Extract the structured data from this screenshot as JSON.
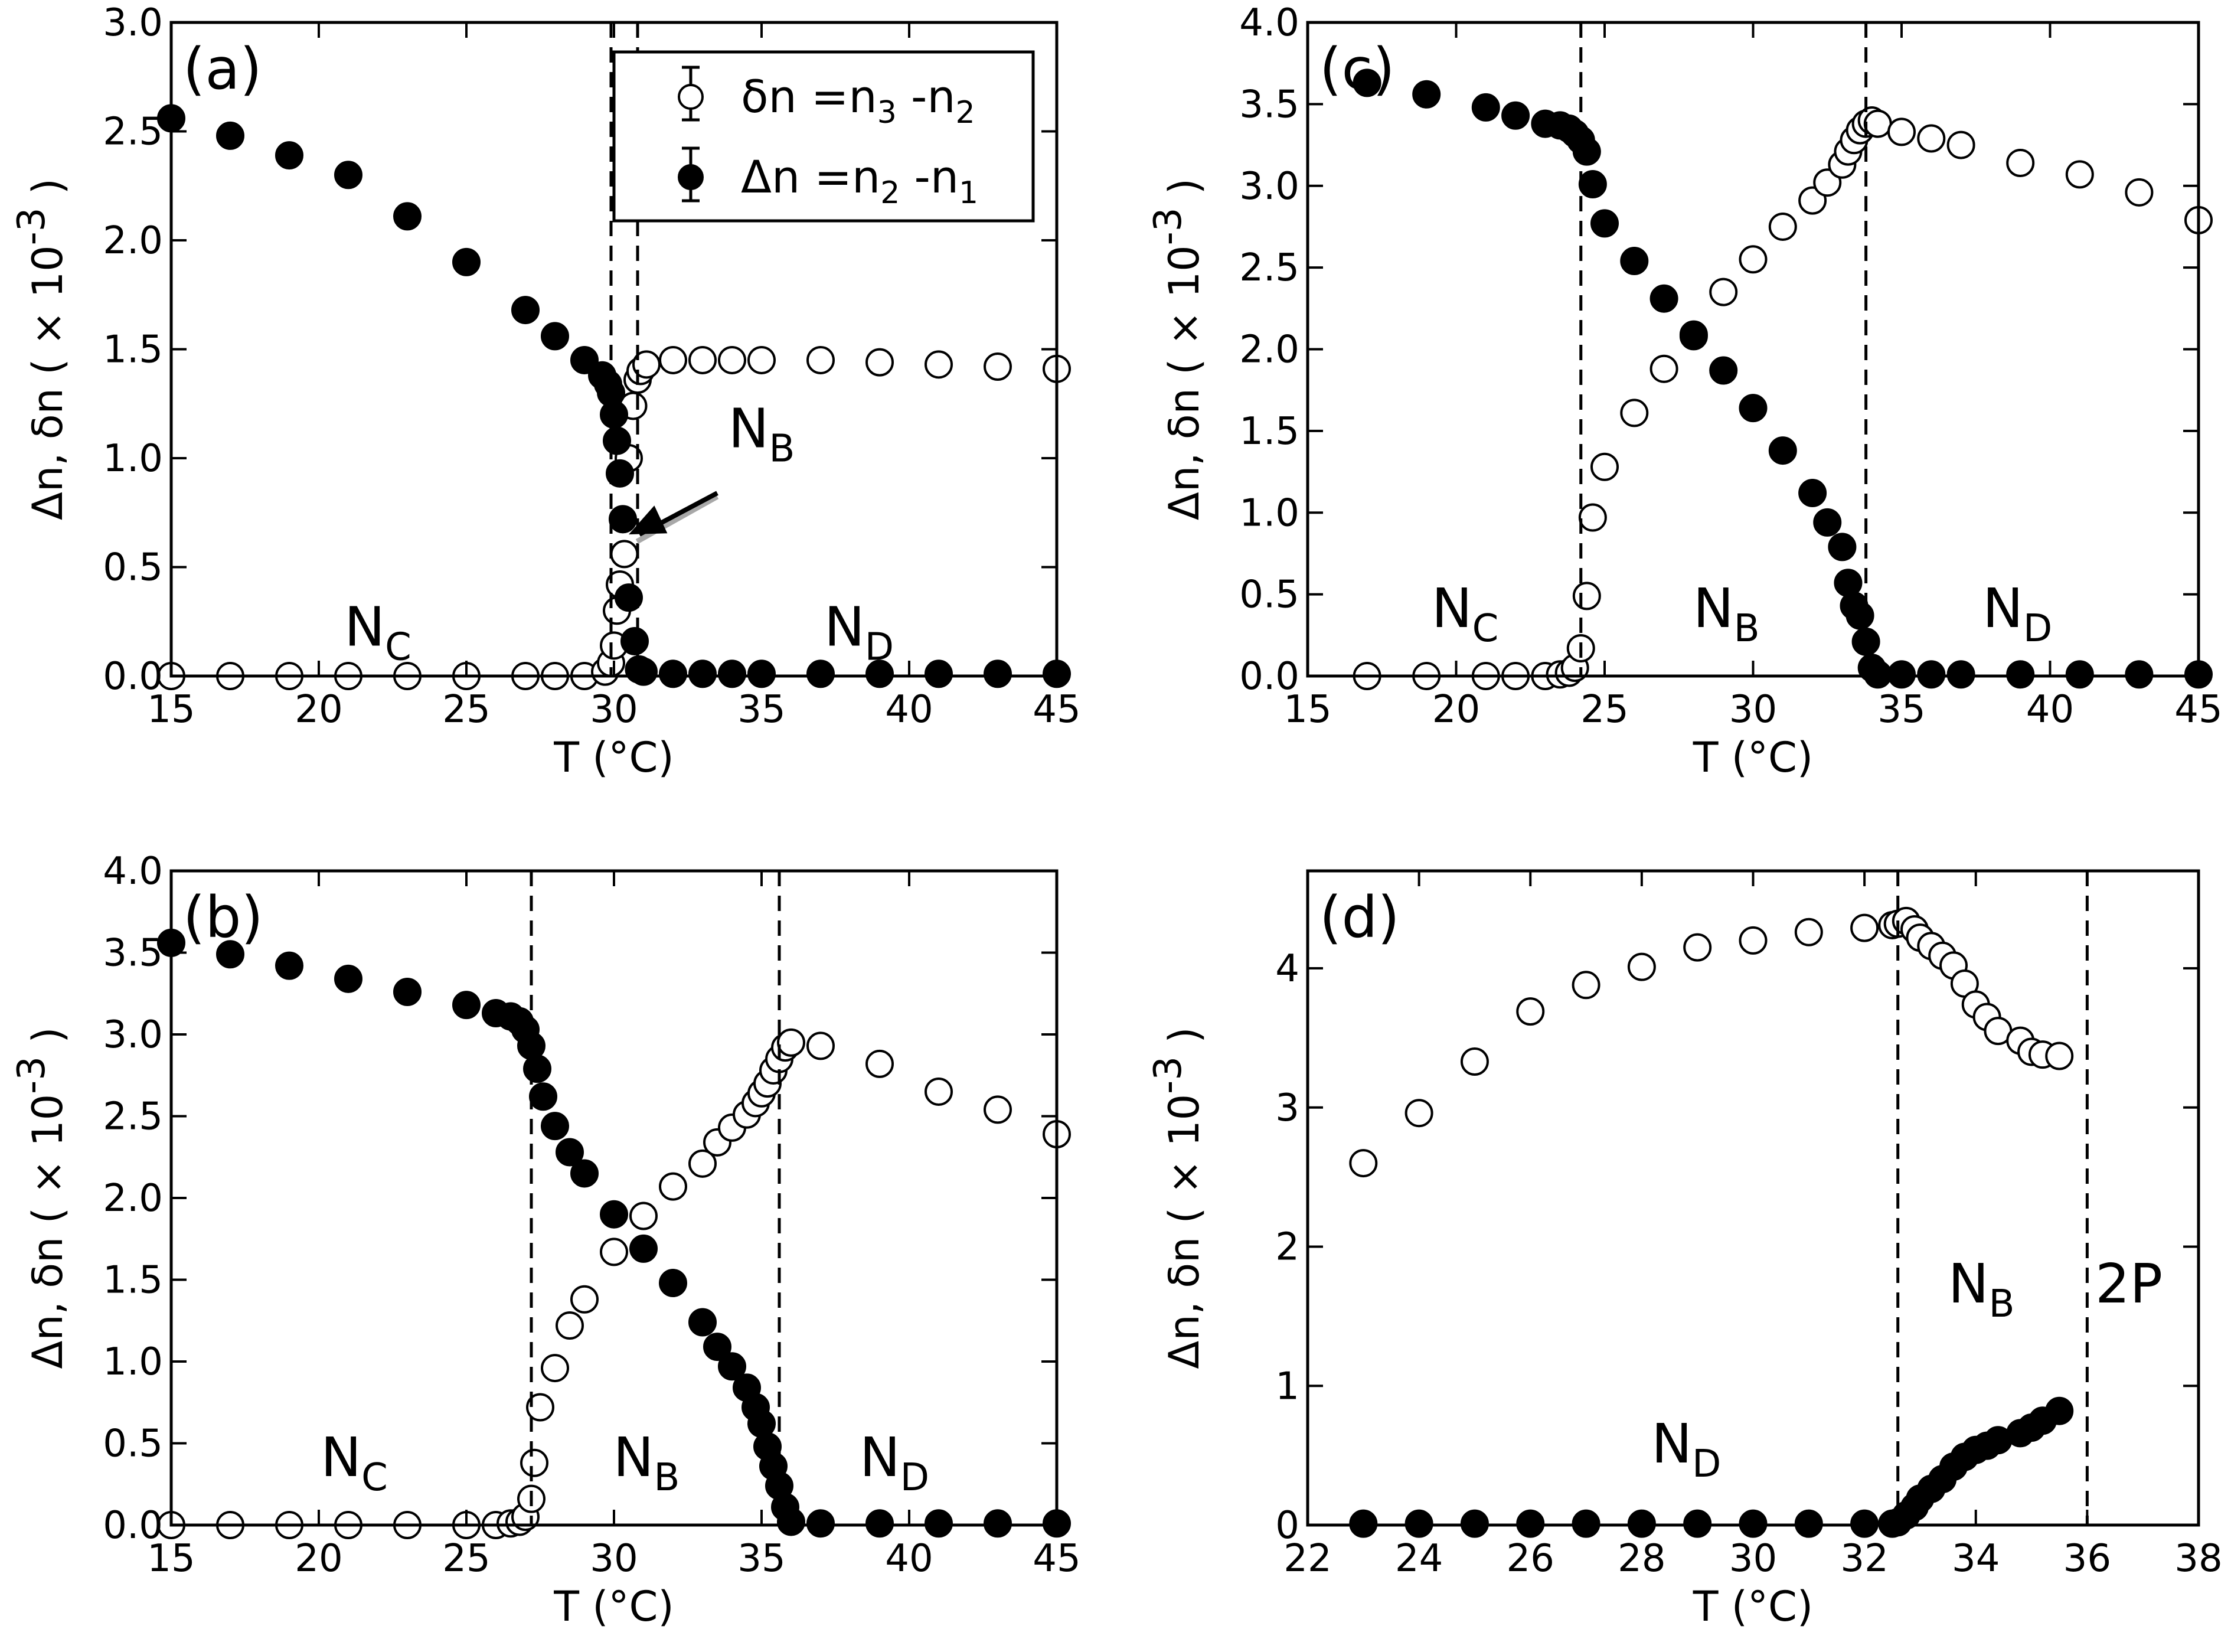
{
  "figure": {
    "legend": {
      "open": {
        "symbol": "δn",
        "eq": " =n",
        "sub1": "3",
        "mid": " -n",
        "sub2": "2"
      },
      "filled": {
        "symbol": "Δn",
        "eq": " =n",
        "sub1": "2",
        "mid": " -n",
        "sub2": "1"
      }
    }
  },
  "chart_data": [
    {
      "id": "a",
      "type": "scatter",
      "panel_label": "(a)",
      "xlabel": "T (°C)",
      "ylabel": {
        "main": "Δn, δn ( × 10",
        "sup": "-3",
        "close": ")"
      },
      "xlim": [
        15,
        45
      ],
      "ylim": [
        0,
        3.0
      ],
      "xticks": [
        15,
        20,
        25,
        30,
        35,
        40,
        45
      ],
      "yticks": [
        0,
        0.5,
        1.0,
        1.5,
        2.0,
        2.5,
        3.0
      ],
      "ytick_labels": [
        "0.0",
        "0.5",
        "1.0",
        "1.5",
        "2.0",
        "2.5",
        "3.0"
      ],
      "vlines": [
        29.9,
        30.8
      ],
      "arrow": {
        "from": [
          33.5,
          0.84
        ],
        "to": [
          30.5,
          0.65
        ]
      },
      "phase_labels": [
        {
          "main": "N",
          "sub": "C",
          "x": 22,
          "y": 0.14
        },
        {
          "main": "N",
          "sub": "B",
          "x": 35,
          "y": 1.05
        },
        {
          "main": "N",
          "sub": "D",
          "x": 38.3,
          "y": 0.14
        }
      ],
      "series": [
        {
          "name": "δn = n3 - n2",
          "marker": "open",
          "x": [
            15,
            17,
            19,
            21,
            23,
            25,
            27,
            28,
            29,
            29.7,
            29.9,
            30.0,
            30.1,
            30.2,
            30.35,
            30.5,
            30.65,
            30.8,
            30.9,
            31.1,
            32,
            33,
            34,
            35,
            37,
            39,
            41,
            43,
            45
          ],
          "y": [
            0,
            0,
            0,
            0,
            0,
            0,
            0,
            0,
            0,
            0.02,
            0.06,
            0.14,
            0.3,
            0.42,
            0.56,
            1.0,
            1.24,
            1.36,
            1.4,
            1.43,
            1.45,
            1.45,
            1.45,
            1.45,
            1.45,
            1.44,
            1.43,
            1.42,
            1.41
          ]
        },
        {
          "name": "Δn = n2 - n1",
          "marker": "filled",
          "x": [
            15,
            17,
            19,
            21,
            23,
            25,
            27,
            28,
            29,
            29.6,
            29.8,
            29.9,
            30.0,
            30.1,
            30.2,
            30.3,
            30.5,
            30.7,
            30.85,
            31,
            32,
            33,
            34,
            35,
            37,
            39,
            41,
            43,
            45
          ],
          "y": [
            2.56,
            2.48,
            2.39,
            2.3,
            2.11,
            1.9,
            1.68,
            1.56,
            1.45,
            1.38,
            1.34,
            1.3,
            1.2,
            1.08,
            0.93,
            0.72,
            0.36,
            0.16,
            0.03,
            0.02,
            0.01,
            0.01,
            0.01,
            0.01,
            0.01,
            0.01,
            0.01,
            0.01,
            0.01
          ]
        }
      ]
    },
    {
      "id": "b",
      "type": "scatter",
      "panel_label": "(b)",
      "xlabel": "T (°C)",
      "ylabel": {
        "main": "Δn, δn ( × 10",
        "sup": "-3",
        "close": ")"
      },
      "xlim": [
        15,
        45
      ],
      "ylim": [
        0,
        4.0
      ],
      "xticks": [
        15,
        20,
        25,
        30,
        35,
        40,
        45
      ],
      "yticks": [
        0,
        0.5,
        1.0,
        1.5,
        2.0,
        2.5,
        3.0,
        3.5,
        4.0
      ],
      "ytick_labels": [
        "0.0",
        "0.5",
        "1.0",
        "1.5",
        "2.0",
        "2.5",
        "3.0",
        "3.5",
        "4.0"
      ],
      "vlines": [
        27.2,
        35.6
      ],
      "phase_labels": [
        {
          "main": "N",
          "sub": "C",
          "x": 21.2,
          "y": 0.3
        },
        {
          "main": "N",
          "sub": "B",
          "x": 31.1,
          "y": 0.3
        },
        {
          "main": "N",
          "sub": "D",
          "x": 39.5,
          "y": 0.3
        }
      ],
      "series": [
        {
          "name": "δn = n3 - n2",
          "marker": "open",
          "x": [
            15,
            17,
            19,
            21,
            23,
            25,
            26,
            26.5,
            26.8,
            27.0,
            27.2,
            27.3,
            27.5,
            28,
            28.5,
            29,
            30,
            31,
            32,
            33,
            33.5,
            34,
            34.5,
            34.8,
            35.0,
            35.2,
            35.4,
            35.6,
            35.8,
            36,
            37,
            39,
            41,
            43,
            45
          ],
          "y": [
            0,
            0,
            0,
            0,
            0,
            0,
            0,
            0.01,
            0.02,
            0.05,
            0.16,
            0.38,
            0.72,
            0.96,
            1.22,
            1.38,
            1.67,
            1.89,
            2.07,
            2.21,
            2.34,
            2.43,
            2.51,
            2.58,
            2.64,
            2.7,
            2.78,
            2.85,
            2.92,
            2.95,
            2.93,
            2.82,
            2.65,
            2.54,
            2.39
          ]
        },
        {
          "name": "Δn = n2 - n1",
          "marker": "filled",
          "x": [
            15,
            17,
            19,
            21,
            23,
            25,
            26,
            26.5,
            26.8,
            27.0,
            27.2,
            27.4,
            27.6,
            28,
            28.5,
            29,
            30,
            31,
            32,
            33,
            33.5,
            34,
            34.5,
            34.8,
            35.0,
            35.2,
            35.4,
            35.6,
            35.8,
            36,
            37,
            39,
            41,
            43,
            45
          ],
          "y": [
            3.56,
            3.49,
            3.42,
            3.34,
            3.26,
            3.18,
            3.13,
            3.11,
            3.08,
            3.03,
            2.93,
            2.79,
            2.62,
            2.44,
            2.28,
            2.15,
            1.9,
            1.69,
            1.48,
            1.24,
            1.09,
            0.97,
            0.84,
            0.72,
            0.62,
            0.48,
            0.36,
            0.24,
            0.11,
            0.02,
            0.01,
            0.01,
            0.01,
            0.01,
            0.01
          ]
        }
      ]
    },
    {
      "id": "c",
      "type": "scatter",
      "panel_label": "(c)",
      "xlabel": "T (°C)",
      "ylabel": {
        "main": "Δn, δn ( × 10",
        "sup": "-3",
        "close": ")"
      },
      "xlim": [
        15,
        45
      ],
      "ylim": [
        0,
        4.0
      ],
      "xticks": [
        15,
        20,
        25,
        30,
        35,
        40,
        45
      ],
      "yticks": [
        0,
        0.5,
        1.0,
        1.5,
        2.0,
        2.5,
        3.0,
        3.5,
        4.0
      ],
      "ytick_labels": [
        "0.0",
        "0.5",
        "1.0",
        "1.5",
        "2.0",
        "2.5",
        "3.0",
        "3.5",
        "4.0"
      ],
      "vlines": [
        24.2,
        33.8
      ],
      "phase_labels": [
        {
          "main": "N",
          "sub": "C",
          "x": 20.3,
          "y": 0.3
        },
        {
          "main": "N",
          "sub": "B",
          "x": 29.1,
          "y": 0.3
        },
        {
          "main": "N",
          "sub": "D",
          "x": 38.9,
          "y": 0.3
        }
      ],
      "series": [
        {
          "name": "δn = n3 - n2",
          "marker": "open",
          "x": [
            17,
            19,
            21,
            22,
            23,
            23.5,
            23.8,
            24.0,
            24.2,
            24.4,
            24.6,
            25,
            26,
            27,
            28,
            29,
            30,
            31,
            32,
            32.5,
            33,
            33.2,
            33.4,
            33.6,
            33.8,
            34.0,
            34.2,
            35,
            36,
            37,
            39,
            41,
            43,
            45
          ],
          "y": [
            0,
            0,
            0,
            0,
            0,
            0.01,
            0.02,
            0.05,
            0.17,
            0.49,
            0.97,
            1.28,
            1.61,
            1.88,
            2.09,
            2.35,
            2.55,
            2.75,
            2.91,
            3.02,
            3.13,
            3.21,
            3.28,
            3.34,
            3.38,
            3.4,
            3.38,
            3.33,
            3.29,
            3.25,
            3.14,
            3.07,
            2.96,
            2.79
          ]
        },
        {
          "name": "Δn = n2 - n1",
          "marker": "filled",
          "x": [
            17,
            19,
            21,
            22,
            23,
            23.5,
            23.8,
            24.0,
            24.2,
            24.4,
            24.6,
            25,
            26,
            27,
            28,
            29,
            30,
            31,
            32,
            32.5,
            33,
            33.2,
            33.4,
            33.6,
            33.8,
            34.0,
            34.2,
            35,
            36,
            37,
            39,
            41,
            43,
            45
          ],
          "y": [
            3.63,
            3.56,
            3.48,
            3.43,
            3.38,
            3.37,
            3.35,
            3.32,
            3.28,
            3.21,
            3.01,
            2.77,
            2.54,
            2.31,
            2.08,
            1.87,
            1.64,
            1.38,
            1.12,
            0.94,
            0.79,
            0.57,
            0.43,
            0.37,
            0.21,
            0.05,
            0.01,
            0.01,
            0.01,
            0.01,
            0.01,
            0.01,
            0.01,
            0.01
          ]
        }
      ]
    },
    {
      "id": "d",
      "type": "scatter",
      "panel_label": "(d)",
      "xlabel": "T (°C)",
      "ylabel": {
        "main": "Δn, δn ( × 10",
        "sup": "-3",
        "close": ")"
      },
      "xlim": [
        22,
        38
      ],
      "ylim": [
        0,
        4.7
      ],
      "xticks": [
        22,
        24,
        26,
        28,
        30,
        32,
        34,
        36,
        38
      ],
      "yticks": [
        0,
        1,
        2,
        3,
        4
      ],
      "ytick_labels": [
        "0",
        "1",
        "2",
        "3",
        "4"
      ],
      "vlines": [
        32.6,
        36.0
      ],
      "phase_labels": [
        {
          "main": "N",
          "sub": "D",
          "x": 28.8,
          "y": 0.45
        },
        {
          "main": "N",
          "sub": "B",
          "x": 34.1,
          "y": 1.6
        },
        {
          "main": "2P",
          "sub": "",
          "x": 36.75,
          "y": 1.6
        }
      ],
      "series": [
        {
          "name": "δn = n3 - n2",
          "marker": "open",
          "x": [
            23,
            24,
            25,
            26,
            27,
            28,
            29,
            30,
            31,
            32,
            32.5,
            32.6,
            32.75,
            32.9,
            33.0,
            33.2,
            33.4,
            33.6,
            33.8,
            34.0,
            34.2,
            34.4,
            34.8,
            35.0,
            35.2,
            35.5
          ],
          "y": [
            2.6,
            2.96,
            3.33,
            3.69,
            3.88,
            4.01,
            4.15,
            4.2,
            4.26,
            4.29,
            4.31,
            4.32,
            4.34,
            4.28,
            4.22,
            4.16,
            4.09,
            4.02,
            3.89,
            3.74,
            3.65,
            3.55,
            3.48,
            3.4,
            3.38,
            3.37
          ]
        },
        {
          "name": "Δn = n2 - n1",
          "marker": "filled",
          "x": [
            23,
            24,
            25,
            26,
            27,
            28,
            29,
            30,
            31,
            32,
            32.5,
            32.6,
            32.75,
            32.9,
            33.0,
            33.2,
            33.4,
            33.6,
            33.8,
            34.0,
            34.2,
            34.4,
            34.8,
            35.0,
            35.2,
            35.5
          ],
          "y": [
            0.01,
            0.01,
            0.01,
            0.01,
            0.01,
            0.01,
            0.01,
            0.01,
            0.01,
            0.01,
            0.01,
            0.02,
            0.07,
            0.13,
            0.19,
            0.26,
            0.33,
            0.42,
            0.49,
            0.54,
            0.57,
            0.61,
            0.66,
            0.7,
            0.75,
            0.82
          ]
        }
      ]
    }
  ]
}
